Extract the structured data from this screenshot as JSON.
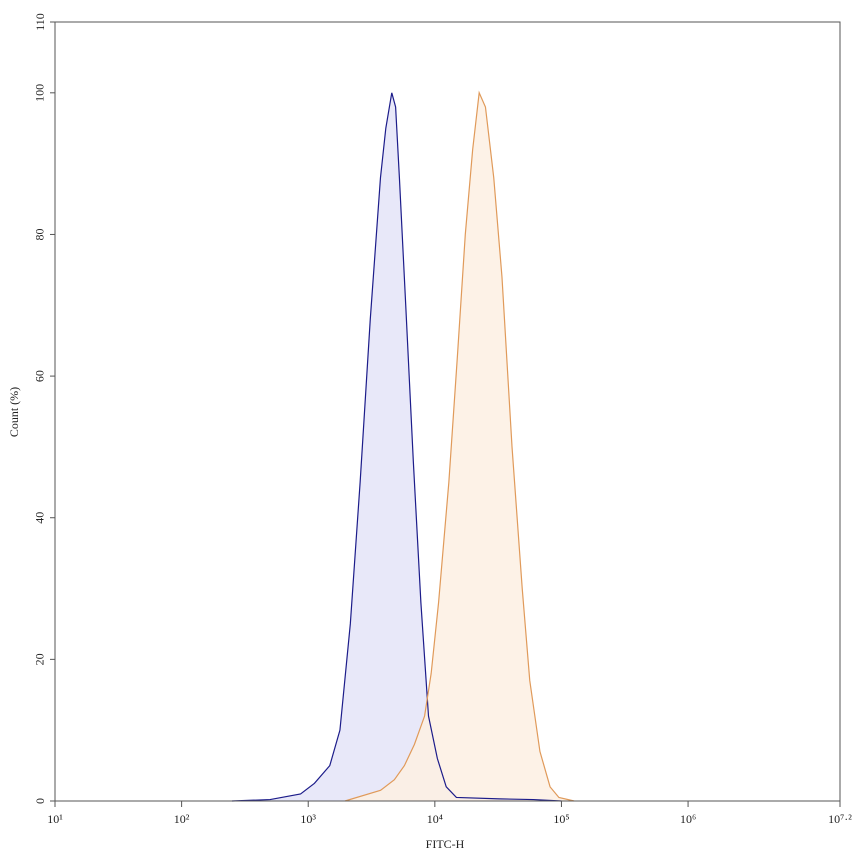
{
  "chart_data": {
    "type": "histogram-overlay",
    "xlabel": "FITC-H",
    "ylabel": "Count (%)",
    "xscale": "log",
    "xlim": [
      10,
      15848931.92
    ],
    "xticks": [
      {
        "value": 10,
        "label": "10¹"
      },
      {
        "value": 100,
        "label": "10²"
      },
      {
        "value": 1000,
        "label": "10³"
      },
      {
        "value": 10000,
        "label": "10⁴"
      },
      {
        "value": 100000,
        "label": "10⁵"
      },
      {
        "value": 1000000,
        "label": "10⁶"
      },
      {
        "value": 15848931.92,
        "label": "10⁷·²"
      }
    ],
    "ylim": [
      0,
      110
    ],
    "yticks": [
      0,
      20,
      40,
      60,
      80,
      100,
      110
    ],
    "series": [
      {
        "color": "#1c1c8a",
        "fill": "#e4e4f8",
        "x": [
          250,
          500,
          870,
          1120,
          1480,
          1780,
          2150,
          2570,
          3090,
          3720,
          4100,
          4570,
          4900,
          5250,
          5890,
          6760,
          7760,
          8910,
          10470,
          12300,
          14800,
          32400,
          60000,
          100000
        ],
        "values": [
          0,
          0.2,
          1,
          2.5,
          5,
          10,
          25,
          45,
          68,
          88,
          95,
          100,
          98,
          88,
          70,
          48,
          28,
          12,
          6,
          2,
          0.5,
          0.3,
          0.2,
          0
        ]
      },
      {
        "color": "#e09a5a",
        "fill": "#fdf0e3",
        "x": [
          1950,
          3720,
          4790,
          5750,
          6900,
          8300,
          9350,
          10700,
          12900,
          15100,
          17400,
          19900,
          22400,
          25100,
          29200,
          33900,
          40700,
          49000,
          56200,
          67600,
          81300,
          95500,
          126000
        ],
        "values": [
          0,
          1.5,
          3,
          5,
          8,
          12,
          18,
          28,
          45,
          63,
          80,
          92,
          100,
          98,
          88,
          74,
          50,
          30,
          17,
          7,
          2,
          0.5,
          0
        ]
      }
    ]
  }
}
